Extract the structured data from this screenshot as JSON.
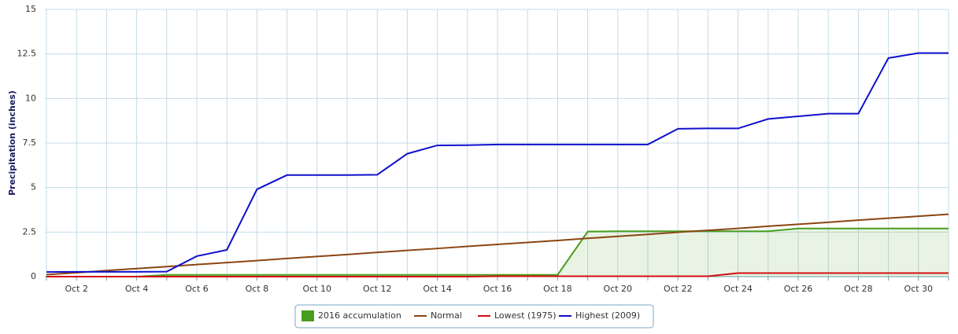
{
  "chart_data": {
    "type": "line",
    "y_label": "Precipitation (inches)",
    "categories": [
      null,
      "Oct 2",
      null,
      "Oct 4",
      null,
      "Oct 6",
      null,
      "Oct 8",
      null,
      "Oct 10",
      null,
      "Oct 12",
      null,
      "Oct 14",
      null,
      "Oct 16",
      null,
      "Oct 18",
      null,
      "Oct 20",
      null,
      "Oct 22",
      null,
      "Oct 24",
      null,
      "Oct 26",
      null,
      "Oct 28",
      null,
      "Oct 30",
      null
    ],
    "series": [
      {
        "name": "2016 accumulation",
        "color": "#4a9e1f",
        "area": true,
        "values": [
          null,
          null,
          null,
          0,
          0.1,
          0.1,
          0.1,
          0.1,
          0.1,
          0.1,
          0.1,
          0.1,
          0.1,
          0.1,
          0.1,
          0.1,
          0.1,
          0.1,
          2.53,
          2.55,
          2.55,
          2.55,
          2.55,
          2.55,
          2.55,
          2.7,
          2.7,
          2.7,
          2.7,
          2.7,
          2.7
        ]
      },
      {
        "name": "Normal",
        "color": "#8b4513",
        "values": [
          0.11,
          0.22,
          0.34,
          0.45,
          0.56,
          0.68,
          0.79,
          0.9,
          1.02,
          1.13,
          1.24,
          1.36,
          1.47,
          1.58,
          1.7,
          1.81,
          1.92,
          2.03,
          2.15,
          2.26,
          2.37,
          2.49,
          2.6,
          2.71,
          2.83,
          2.94,
          3.05,
          3.17,
          3.28,
          3.39,
          3.5
        ]
      },
      {
        "name": "Lowest (1975)",
        "color": "#d01010",
        "values": [
          0,
          0,
          0,
          0,
          0,
          0,
          0,
          0,
          0,
          0,
          0,
          0,
          0,
          0,
          0,
          0.02,
          0.02,
          0.02,
          0.02,
          0.02,
          0.02,
          0.02,
          0.02,
          0.2,
          0.2,
          0.2,
          0.2,
          0.2,
          0.2,
          0.2,
          0.2
        ]
      },
      {
        "name": "Highest (2009)",
        "color": "#1010cc",
        "values": [
          0.26,
          0.27,
          0.27,
          0.27,
          0.28,
          1.15,
          1.5,
          4.9,
          5.7,
          5.7,
          5.7,
          5.72,
          6.9,
          7.37,
          7.38,
          7.42,
          7.42,
          7.42,
          7.42,
          7.42,
          7.42,
          8.3,
          8.32,
          8.32,
          8.85,
          9.0,
          9.15,
          9.15,
          12.27,
          12.55,
          12.55
        ]
      }
    ],
    "ylim": [
      0,
      15
    ],
    "yticks": [
      0,
      2.5,
      5,
      7.5,
      10,
      12.5,
      15
    ],
    "grid": true,
    "legend": "bottom"
  }
}
